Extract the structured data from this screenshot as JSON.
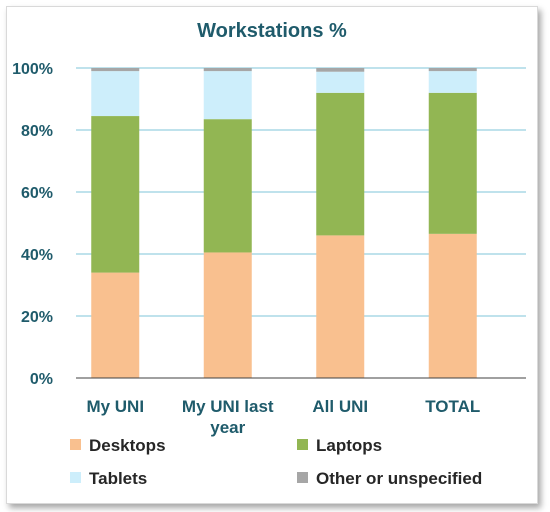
{
  "chart_data": {
    "type": "bar",
    "stacked": true,
    "title": "Workstations %",
    "xlabel": "",
    "ylabel": "",
    "ylim": [
      0,
      100
    ],
    "yticks": [
      "0%",
      "20%",
      "40%",
      "60%",
      "80%",
      "100%"
    ],
    "grid": true,
    "legend": "bottom",
    "categories": [
      [
        "My UNI"
      ],
      [
        "My UNI last",
        "year"
      ],
      [
        "All UNI"
      ],
      [
        "TOTAL"
      ]
    ],
    "series": [
      {
        "name": "Desktops",
        "color": "#f9c08f",
        "values": [
          34,
          40.5,
          46,
          46.5
        ]
      },
      {
        "name": "Laptops",
        "color": "#92b653",
        "values": [
          50.5,
          43,
          46,
          45.5
        ]
      },
      {
        "name": "Tablets",
        "color": "#cdeefb",
        "values": [
          14.5,
          15.5,
          6.8,
          7
        ]
      },
      {
        "name": "Other or unspecified",
        "color": "#a6a6a6",
        "values": [
          1,
          1,
          1.2,
          1
        ]
      }
    ]
  }
}
